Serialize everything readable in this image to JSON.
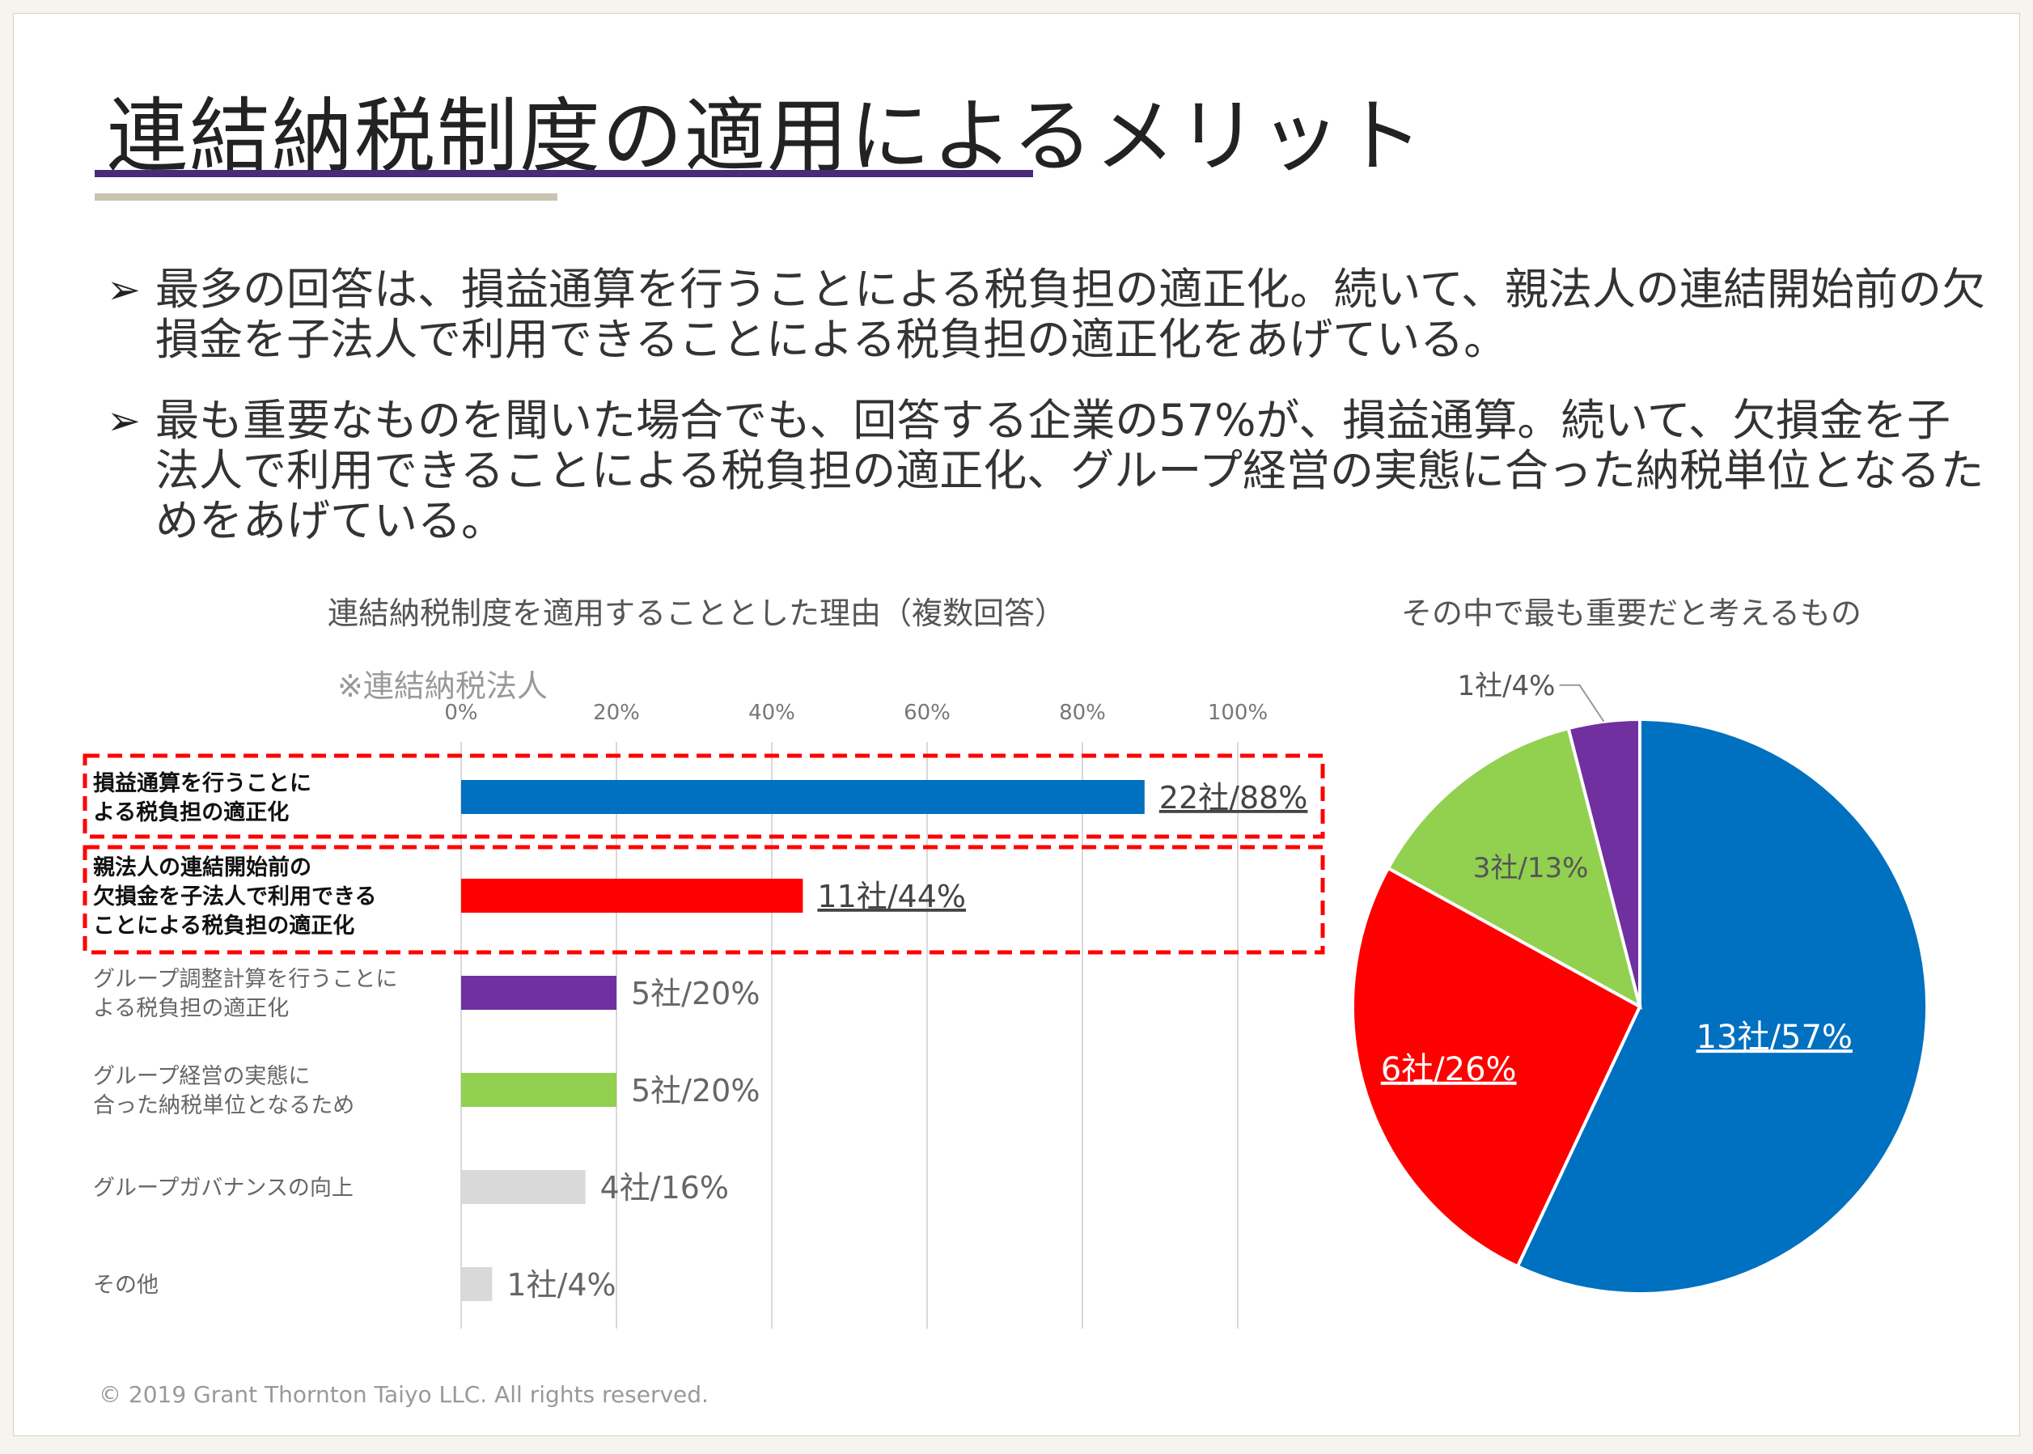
{
  "title": "連結納税制度の適用によるメリット",
  "bullets": [
    "最多の回答は、損益通算を行うことによる税負担の適正化。続いて、親法人の連結開始前の欠損金を子法人で利用できることによる税負担の適正化をあげている。",
    "最も重要なものを聞いた場合でも、回答する企業の57%が、損益通算。続いて、欠損金を子法人で利用できることによる税負担の適正化、グループ経営の実態に合った納税単位となるためをあげている。"
  ],
  "bar_chart_title": "連結納税制度を適用することとした理由（複数回答）",
  "bar_chart_note": "※連結納税法人",
  "pie_chart_title": "その中で最も重要だと考えるもの",
  "footer": "© 2019 Grant Thornton Taiyo LLC. All rights reserved.",
  "colors": {
    "blue": "#0070c0",
    "red": "#ff0000",
    "purple": "#7030a0",
    "green": "#92d050",
    "gray": "#d9d9d9",
    "highlight": "#ff0000"
  },
  "chart_data": [
    {
      "type": "bar",
      "orientation": "horizontal",
      "title": "連結納税制度を適用することとした理由（複数回答）",
      "xlim": [
        0,
        100
      ],
      "ticks": [
        "0%",
        "20%",
        "40%",
        "60%",
        "80%",
        "100%"
      ],
      "tick_values": [
        0,
        20,
        40,
        60,
        80,
        100
      ],
      "categories": [
        [
          "損益通算を行うことに",
          "よる税負担の適正化"
        ],
        [
          "親法人の連結開始前の",
          "欠損金を子法人で利用できる",
          "ことによる税負担の適正化"
        ],
        [
          "グループ調整計算を行うことに",
          "よる税負担の適正化"
        ],
        [
          "グループ経営の実態に",
          "合った納税単位となるため"
        ],
        [
          "グループガバナンスの向上"
        ],
        [
          "その他"
        ]
      ],
      "values": [
        88,
        44,
        20,
        20,
        16,
        4
      ],
      "data_labels": [
        "22社/88%",
        "11社/44%",
        "5社/20%",
        "5社/20%",
        "4社/16%",
        "1社/4%"
      ],
      "bar_colors": [
        "#0070c0",
        "#ff0000",
        "#7030a0",
        "#92d050",
        "#d9d9d9",
        "#d9d9d9"
      ],
      "highlighted": [
        true,
        true,
        false,
        false,
        false,
        false
      ]
    },
    {
      "type": "pie",
      "title": "その中で最も重要だと考えるもの",
      "values": [
        57,
        26,
        13,
        4
      ],
      "labels": [
        "13社/57%",
        "6社/26%",
        "3社/13%",
        "1社/4%"
      ],
      "colors": [
        "#0070c0",
        "#ff0000",
        "#92d050",
        "#7030a0"
      ]
    }
  ]
}
